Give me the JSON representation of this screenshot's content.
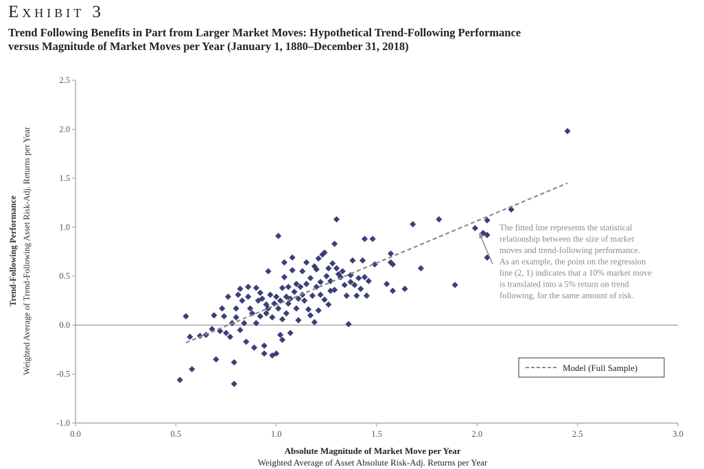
{
  "header": {
    "exhibit": "Exhibit 3",
    "title_line1": "Trend Following Benefits in Part from Larger Market Moves: Hypothetical Trend-Following Performance",
    "title_line2": "versus Magnitude of Market Moves per Year (January 1, 1880–December 31, 2018)"
  },
  "colors": {
    "point": "#3b3f78",
    "line": "#8a8a8a",
    "axis": "#9a9a9a",
    "annotation": "#8a8a8a"
  },
  "chart_data": {
    "type": "scatter",
    "xlabel_line1": "Absolute Magnitude of Market Move per Year",
    "xlabel_line2": "Weighted Average of Asset Absolute Risk-Adj. Returns per Year",
    "ylabel_line1": "Trend-Following Performance",
    "ylabel_line2": "Weighted Average of Trend-Following Asset Risk-Adj. Returns per Year",
    "xlim": [
      0.0,
      3.0
    ],
    "ylim": [
      -1.0,
      2.5
    ],
    "x_ticks": [
      "0.0",
      "0.5",
      "1.0",
      "1.5",
      "2.0",
      "2.5",
      "3.0"
    ],
    "y_ticks": [
      "-1.0",
      "-0.5",
      "0.0",
      "0.5",
      "1.0",
      "1.5",
      "2.0",
      "2.5"
    ],
    "grid": false,
    "legend": {
      "position": "lower-right",
      "label": "Model (Full Sample)"
    },
    "regression_line": {
      "name": "Model (Full Sample)",
      "x": [
        0.55,
        2.45
      ],
      "y": [
        -0.18,
        1.45
      ]
    },
    "annotation": {
      "lines": [
        "The fitted line represents the statistical",
        "relationship between the size of market",
        "moves and trend-following performance.",
        "As an example, the point on the regression",
        "line (2, 1) indicates that a 10% market move",
        "is translated into a 5% return on trend",
        "following, for the same amount of risk."
      ],
      "arrow_to": [
        2.0,
        0.96
      ]
    },
    "points": [
      [
        0.52,
        -0.56
      ],
      [
        0.55,
        0.09
      ],
      [
        0.57,
        -0.12
      ],
      [
        0.58,
        -0.45
      ],
      [
        0.62,
        -0.11
      ],
      [
        0.65,
        -0.1
      ],
      [
        0.68,
        -0.04
      ],
      [
        0.69,
        0.1
      ],
      [
        0.7,
        -0.35
      ],
      [
        0.72,
        -0.06
      ],
      [
        0.73,
        0.17
      ],
      [
        0.74,
        0.09
      ],
      [
        0.75,
        -0.08
      ],
      [
        0.76,
        0.29
      ],
      [
        0.77,
        -0.12
      ],
      [
        0.78,
        0.02
      ],
      [
        0.79,
        -0.38
      ],
      [
        0.79,
        -0.6
      ],
      [
        0.8,
        0.17
      ],
      [
        0.8,
        0.08
      ],
      [
        0.81,
        0.31
      ],
      [
        0.82,
        0.37
      ],
      [
        0.82,
        -0.05
      ],
      [
        0.83,
        0.25
      ],
      [
        0.84,
        0.02
      ],
      [
        0.85,
        -0.17
      ],
      [
        0.86,
        0.29
      ],
      [
        0.86,
        0.39
      ],
      [
        0.87,
        0.17
      ],
      [
        0.88,
        0.12
      ],
      [
        0.89,
        -0.23
      ],
      [
        0.9,
        0.02
      ],
      [
        0.9,
        0.38
      ],
      [
        0.91,
        0.25
      ],
      [
        0.92,
        0.09
      ],
      [
        0.92,
        0.33
      ],
      [
        0.93,
        0.27
      ],
      [
        0.94,
        -0.29
      ],
      [
        0.94,
        -0.21
      ],
      [
        0.95,
        0.21
      ],
      [
        0.95,
        0.12
      ],
      [
        0.96,
        0.55
      ],
      [
        0.96,
        0.17
      ],
      [
        0.97,
        0.31
      ],
      [
        0.98,
        0.08
      ],
      [
        0.98,
        -0.31
      ],
      [
        0.99,
        0.22
      ],
      [
        1.0,
        0.29
      ],
      [
        1.0,
        -0.29
      ],
      [
        1.01,
        0.91
      ],
      [
        1.01,
        0.17
      ],
      [
        1.02,
        0.25
      ],
      [
        1.02,
        -0.1
      ],
      [
        1.03,
        0.06
      ],
      [
        1.03,
        0.38
      ],
      [
        1.03,
        -0.15
      ],
      [
        1.04,
        0.64
      ],
      [
        1.04,
        0.49
      ],
      [
        1.05,
        0.29
      ],
      [
        1.05,
        0.12
      ],
      [
        1.06,
        0.39
      ],
      [
        1.06,
        0.22
      ],
      [
        1.07,
        0.27
      ],
      [
        1.07,
        -0.08
      ],
      [
        1.08,
        0.56
      ],
      [
        1.08,
        0.69
      ],
      [
        1.09,
        0.34
      ],
      [
        1.1,
        0.17
      ],
      [
        1.1,
        0.42
      ],
      [
        1.11,
        0.27
      ],
      [
        1.11,
        0.05
      ],
      [
        1.12,
        0.39
      ],
      [
        1.13,
        0.55
      ],
      [
        1.13,
        0.31
      ],
      [
        1.14,
        0.25
      ],
      [
        1.15,
        0.64
      ],
      [
        1.15,
        0.42
      ],
      [
        1.16,
        0.16
      ],
      [
        1.17,
        0.48
      ],
      [
        1.17,
        0.1
      ],
      [
        1.18,
        0.3
      ],
      [
        1.19,
        0.6
      ],
      [
        1.19,
        0.03
      ],
      [
        1.2,
        0.57
      ],
      [
        1.2,
        0.39
      ],
      [
        1.21,
        0.68
      ],
      [
        1.21,
        0.15
      ],
      [
        1.22,
        0.31
      ],
      [
        1.22,
        0.44
      ],
      [
        1.23,
        0.72
      ],
      [
        1.24,
        0.26
      ],
      [
        1.24,
        0.74
      ],
      [
        1.25,
        0.5
      ],
      [
        1.26,
        0.21
      ],
      [
        1.26,
        0.58
      ],
      [
        1.27,
        0.35
      ],
      [
        1.27,
        0.45
      ],
      [
        1.28,
        0.63
      ],
      [
        1.29,
        0.36
      ],
      [
        1.29,
        0.83
      ],
      [
        1.3,
        0.58
      ],
      [
        1.3,
        1.08
      ],
      [
        1.31,
        0.52
      ],
      [
        1.32,
        0.49
      ],
      [
        1.33,
        0.55
      ],
      [
        1.34,
        0.41
      ],
      [
        1.35,
        0.3
      ],
      [
        1.36,
        0.01
      ],
      [
        1.37,
        0.51
      ],
      [
        1.37,
        0.44
      ],
      [
        1.38,
        0.66
      ],
      [
        1.39,
        0.41
      ],
      [
        1.4,
        0.3
      ],
      [
        1.41,
        0.48
      ],
      [
        1.42,
        0.37
      ],
      [
        1.43,
        0.66
      ],
      [
        1.44,
        0.88
      ],
      [
        1.44,
        0.49
      ],
      [
        1.45,
        0.3
      ],
      [
        1.46,
        0.45
      ],
      [
        1.48,
        0.88
      ],
      [
        1.49,
        0.62
      ],
      [
        1.55,
        0.42
      ],
      [
        1.57,
        0.64
      ],
      [
        1.57,
        0.73
      ],
      [
        1.58,
        0.35
      ],
      [
        1.58,
        0.62
      ],
      [
        1.64,
        0.37
      ],
      [
        1.68,
        1.03
      ],
      [
        1.72,
        0.58
      ],
      [
        1.81,
        1.08
      ],
      [
        1.89,
        0.41
      ],
      [
        1.99,
        0.99
      ],
      [
        2.03,
        0.94
      ],
      [
        2.05,
        0.92
      ],
      [
        2.05,
        1.07
      ],
      [
        2.05,
        0.69
      ],
      [
        2.17,
        1.18
      ],
      [
        2.45,
        1.98
      ]
    ]
  }
}
